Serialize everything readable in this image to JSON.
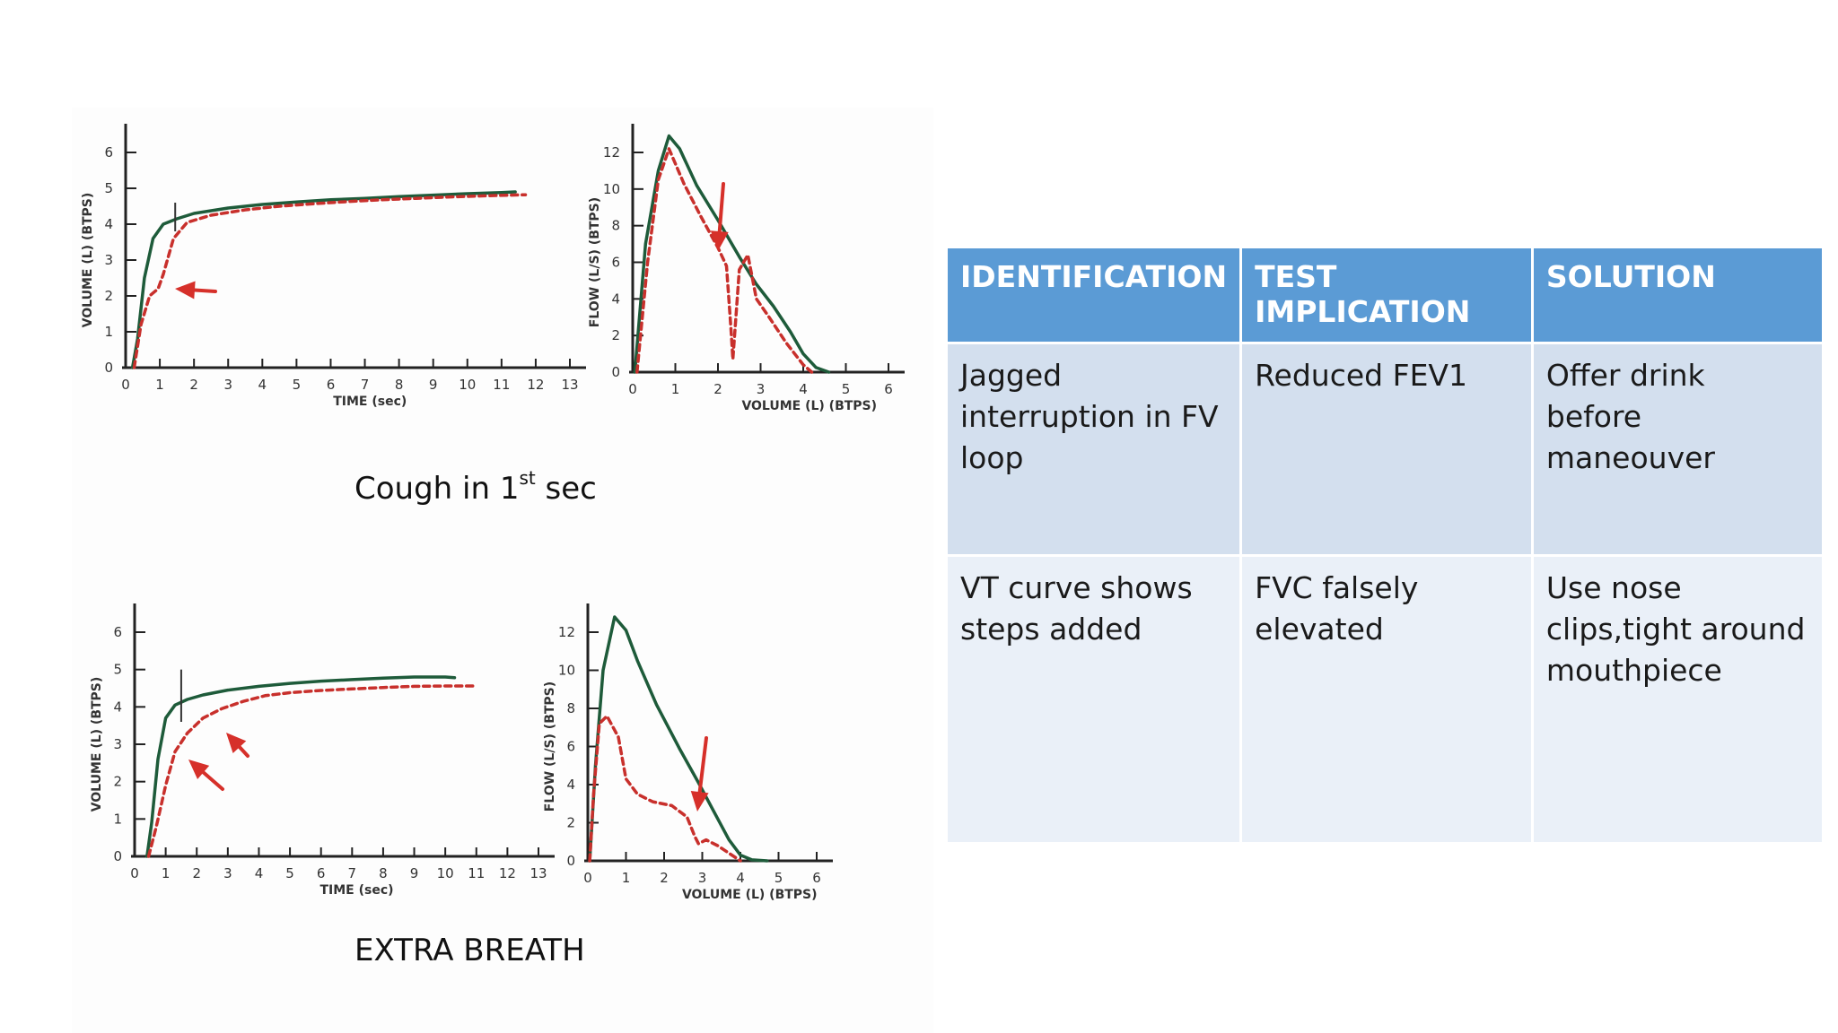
{
  "captions": {
    "cough_prefix": "Cough in 1",
    "cough_sup": "st",
    "cough_suffix": " sec",
    "extra_breath": "EXTRA BREATH"
  },
  "table": {
    "headers": [
      "IDENTIFICATION",
      "TEST IMPLICATION",
      "SOLUTION"
    ],
    "rows": [
      [
        "Jagged interruption in FV loop",
        "Reduced FEV1",
        "Offer drink before maneouver"
      ],
      [
        "VT  curve shows steps added",
        "FVC falsely elevated",
        "Use nose clips,tight around mouthpiece"
      ]
    ],
    "header_color": "#5b9bd5",
    "row_colors": [
      "#d3dfee",
      "#eaf0f8"
    ]
  },
  "chart_data": [
    {
      "type": "line",
      "xlabel": "TIME (sec)",
      "ylabel": "VOLUME (L) (BTPS)",
      "xlim": [
        0,
        13
      ],
      "ylim": [
        0,
        6
      ],
      "xticks": [
        "0",
        "1",
        "2",
        "3",
        "4",
        "5",
        "6",
        "7",
        "8",
        "9",
        "10",
        "11",
        "12",
        "13"
      ],
      "yticks": [
        "0",
        "1",
        "2",
        "3",
        "4",
        "5",
        "6"
      ],
      "series": [
        {
          "style": "solid",
          "color": "#1e5b3a",
          "x": [
            0.2,
            0.35,
            0.55,
            0.8,
            1.1,
            1.5,
            2.0,
            3.0,
            4.0,
            5.0,
            6.0,
            7.0,
            8.0,
            9.0,
            10.0,
            11.0,
            11.4
          ],
          "y": [
            0,
            0.8,
            2.5,
            3.6,
            4.0,
            4.15,
            4.3,
            4.45,
            4.55,
            4.62,
            4.68,
            4.72,
            4.77,
            4.81,
            4.85,
            4.88,
            4.9
          ]
        },
        {
          "style": "dashed",
          "color": "#c8302c",
          "x": [
            0.25,
            0.45,
            0.7,
            0.95,
            1.1,
            1.4,
            1.8,
            2.5,
            3.5,
            4.5,
            5.5,
            6.5,
            7.5,
            8.5,
            9.5,
            10.5,
            11.7
          ],
          "y": [
            0,
            1.2,
            2.0,
            2.2,
            2.6,
            3.6,
            4.05,
            4.25,
            4.4,
            4.5,
            4.57,
            4.63,
            4.68,
            4.72,
            4.76,
            4.79,
            4.82
          ]
        }
      ]
    },
    {
      "type": "line",
      "xlabel": "VOLUME (L) (BTPS)",
      "ylabel": "FLOW (L/S) (BTPS)",
      "xlim": [
        0,
        6
      ],
      "ylim": [
        0,
        12
      ],
      "xticks": [
        "0",
        "1",
        "2",
        "3",
        "4",
        "5",
        "6"
      ],
      "yticks": [
        "0",
        "2",
        "4",
        "6",
        "8",
        "10",
        "12"
      ],
      "series": [
        {
          "style": "solid",
          "color": "#1e5b3a",
          "x": [
            0.05,
            0.3,
            0.6,
            0.85,
            1.1,
            1.5,
            2.0,
            2.5,
            2.9,
            3.3,
            3.7,
            4.0,
            4.3,
            4.6
          ],
          "y": [
            0,
            7,
            11,
            12.9,
            12.2,
            10.2,
            8.3,
            6.3,
            4.8,
            3.6,
            2.2,
            1.0,
            0.25,
            0
          ]
        },
        {
          "style": "dashed",
          "color": "#c8302c",
          "x": [
            0.1,
            0.35,
            0.6,
            0.85,
            1.2,
            1.6,
            2.0,
            2.2,
            2.3,
            2.35,
            2.5,
            2.7,
            2.9,
            3.2,
            3.6,
            4.0,
            4.2
          ],
          "y": [
            0,
            6,
            10.5,
            12.2,
            10.3,
            8.5,
            6.8,
            5.8,
            2.5,
            0.7,
            5.6,
            6.4,
            4.0,
            3.0,
            1.6,
            0.4,
            0
          ]
        }
      ]
    },
    {
      "type": "line",
      "xlabel": "TIME (sec)",
      "ylabel": "VOLUME (L) (BTPS)",
      "xlim": [
        0,
        13
      ],
      "ylim": [
        0,
        6
      ],
      "xticks": [
        "0",
        "1",
        "2",
        "3",
        "4",
        "5",
        "6",
        "7",
        "8",
        "9",
        "10",
        "11",
        "12",
        "13"
      ],
      "yticks": [
        "0",
        "1",
        "2",
        "3",
        "4",
        "5",
        "6"
      ],
      "series": [
        {
          "style": "solid",
          "color": "#1e5b3a",
          "x": [
            0.4,
            0.55,
            0.75,
            1.0,
            1.3,
            1.7,
            2.2,
            3.0,
            4.0,
            5.0,
            6.0,
            7.0,
            8.0,
            9.0,
            10.0,
            10.3
          ],
          "y": [
            0,
            0.9,
            2.6,
            3.7,
            4.05,
            4.2,
            4.32,
            4.45,
            4.55,
            4.63,
            4.69,
            4.73,
            4.77,
            4.8,
            4.8,
            4.78
          ]
        },
        {
          "style": "dashed",
          "color": "#c8302c",
          "x": [
            0.45,
            0.7,
            1.0,
            1.3,
            1.7,
            2.2,
            2.8,
            3.5,
            4.2,
            5.0,
            6.0,
            7.0,
            8.0,
            9.0,
            10.0,
            11.0
          ],
          "y": [
            0,
            0.8,
            1.9,
            2.8,
            3.3,
            3.7,
            3.95,
            4.15,
            4.3,
            4.38,
            4.44,
            4.48,
            4.52,
            4.55,
            4.56,
            4.56
          ]
        }
      ]
    },
    {
      "type": "line",
      "xlabel": "VOLUME (L) (BTPS)",
      "ylabel": "FLOW (L/S) (BTPS)",
      "xlim": [
        0,
        6
      ],
      "ylim": [
        0,
        12
      ],
      "xticks": [
        "0",
        "1",
        "2",
        "3",
        "4",
        "5",
        "6"
      ],
      "yticks": [
        "0",
        "2",
        "4",
        "6",
        "8",
        "10",
        "12"
      ],
      "series": [
        {
          "style": "solid",
          "color": "#1e5b3a",
          "x": [
            0.05,
            0.2,
            0.4,
            0.7,
            1.0,
            1.3,
            1.8,
            2.4,
            2.9,
            3.3,
            3.7,
            4.0,
            4.3,
            4.7
          ],
          "y": [
            0,
            5,
            10,
            12.8,
            12.1,
            10.5,
            8.2,
            5.9,
            4.1,
            2.6,
            1.1,
            0.3,
            0.05,
            0
          ]
        },
        {
          "style": "dashed",
          "color": "#c8302c",
          "x": [
            0.05,
            0.15,
            0.3,
            0.5,
            0.8,
            1.0,
            1.3,
            1.7,
            2.2,
            2.6,
            2.8,
            2.9,
            3.1,
            3.4,
            3.7,
            4.0
          ],
          "y": [
            0,
            3.5,
            7.2,
            7.6,
            6.5,
            4.3,
            3.5,
            3.1,
            2.9,
            2.3,
            1.3,
            0.9,
            1.1,
            0.8,
            0.4,
            0
          ]
        }
      ]
    }
  ]
}
